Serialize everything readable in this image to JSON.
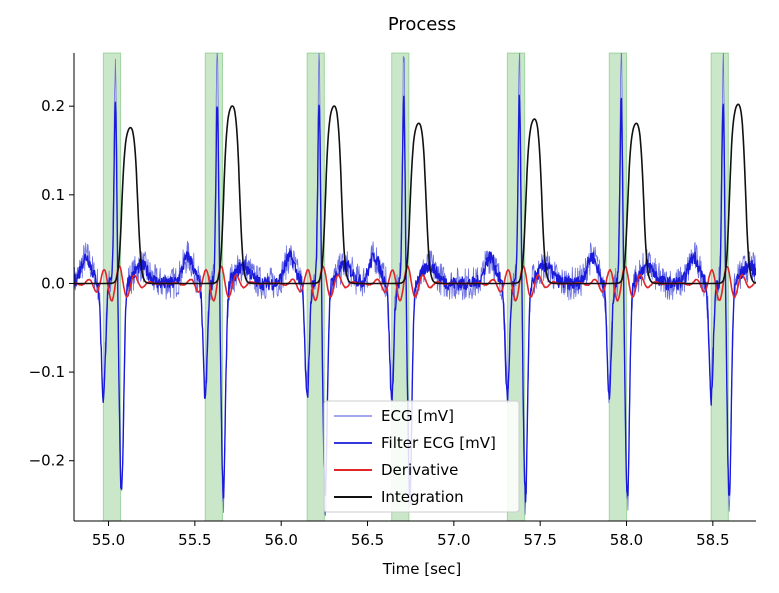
{
  "chart_data": {
    "type": "line",
    "title": "Process",
    "xlabel": "Time [sec]",
    "ylabel": "",
    "xlim": [
      54.8,
      58.75
    ],
    "ylim": [
      -0.268,
      0.26
    ],
    "xticks": [
      55.0,
      55.5,
      56.0,
      56.5,
      57.0,
      57.5,
      58.0,
      58.5
    ],
    "xtick_labels": [
      "55.0",
      "55.5",
      "56.0",
      "56.5",
      "57.0",
      "57.5",
      "58.0",
      "58.5"
    ],
    "yticks": [
      -0.2,
      -0.1,
      0.0,
      0.1,
      0.2
    ],
    "ytick_labels": [
      "−0.2",
      "−0.1",
      "0.0",
      "0.1",
      "0.2"
    ],
    "grid": false,
    "legend_position": "lower center",
    "beats": [
      55.04,
      55.63,
      56.22,
      56.71,
      57.38,
      57.97,
      58.56
    ],
    "highlight_spans": [
      [
        54.97,
        55.07
      ],
      [
        55.56,
        55.66
      ],
      [
        56.15,
        56.25
      ],
      [
        56.64,
        56.74
      ],
      [
        57.31,
        57.41
      ],
      [
        57.9,
        58.0
      ],
      [
        58.49,
        58.59
      ]
    ],
    "series": [
      {
        "name": "ECG [mV]",
        "color": "#6b70e0",
        "width": 0.8,
        "r_peak": 0.26,
        "q_trough": -0.12,
        "s_trough": -0.25,
        "noise": 0.015
      },
      {
        "name": "Filter ECG [mV]",
        "color": "#1a1adb",
        "width": 1.4,
        "r_peak": 0.21,
        "q_trough": -0.13,
        "s_trough": -0.24,
        "noise": 0.01
      },
      {
        "name": "Derivative",
        "color": "#e0262b",
        "width": 1.6,
        "amplitude": 0.02
      },
      {
        "name": "Integration",
        "color": "#111111",
        "width": 1.6,
        "peaks": [
          0.18,
          0.205,
          0.205,
          0.185,
          0.19,
          0.185,
          0.207
        ]
      }
    ],
    "highlight_color": "#2ca02c"
  }
}
